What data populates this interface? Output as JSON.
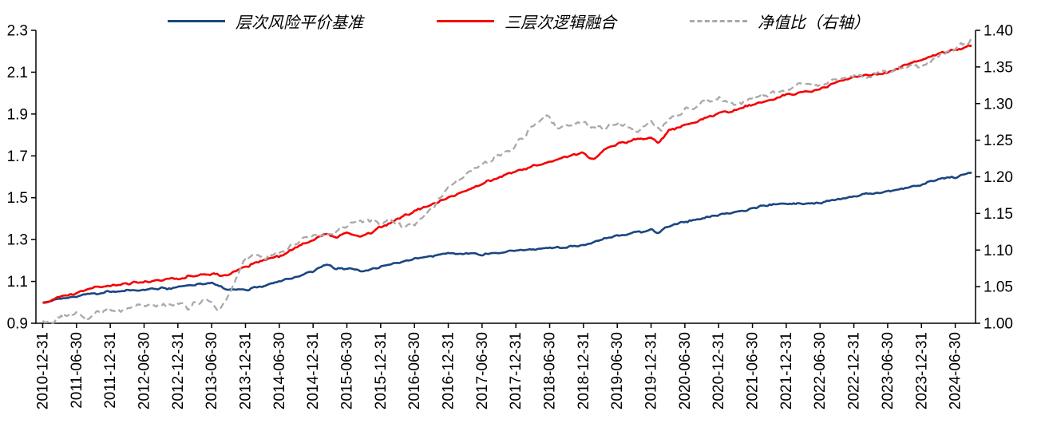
{
  "chart_data": {
    "type": "line",
    "title": "",
    "grid": false,
    "legend_position": "top",
    "x_unit": "half-year index from 2010-12-31",
    "x_min": -0.2,
    "x_max": 27.6,
    "x_labels": [
      "2010-12-31",
      "2011-06-30",
      "2011-12-31",
      "2012-06-30",
      "2012-12-31",
      "2013-06-30",
      "2013-12-31",
      "2014-06-30",
      "2014-12-31",
      "2015-06-30",
      "2015-12-31",
      "2016-06-30",
      "2016-12-31",
      "2017-06-30",
      "2017-12-31",
      "2018-06-30",
      "2018-12-31",
      "2019-06-30",
      "2019-12-31",
      "2020-06-30",
      "2020-12-31",
      "2021-06-30",
      "2021-12-31",
      "2022-06-30",
      "2022-12-31",
      "2023-06-30",
      "2023-12-31",
      "2024-06-30"
    ],
    "left_axis": {
      "min": 0.9,
      "max": 2.3,
      "tick_step": 0.2,
      "tick_labels": [
        "0.9",
        "1.1",
        "1.3",
        "1.5",
        "1.7",
        "1.9",
        "2.1",
        "2.3"
      ]
    },
    "right_axis": {
      "min": 1.0,
      "max": 1.4,
      "tick_step": 0.05,
      "tick_labels": [
        "1.00",
        "1.05",
        "1.10",
        "1.15",
        "1.20",
        "1.25",
        "1.30",
        "1.35",
        "1.40"
      ]
    },
    "axis_color": "#000000",
    "series": [
      {
        "name": "层次风险平价基准",
        "color": "#1a4680",
        "axis": "left",
        "style": "solid",
        "width": 2.6,
        "noise": 0.007,
        "seed": 11,
        "points": [
          [
            0,
            1.0
          ],
          [
            0.5,
            1.016
          ],
          [
            1,
            1.03
          ],
          [
            1.5,
            1.042
          ],
          [
            2,
            1.052
          ],
          [
            2.5,
            1.055
          ],
          [
            3,
            1.062
          ],
          [
            3.5,
            1.066
          ],
          [
            4,
            1.072
          ],
          [
            4.5,
            1.083
          ],
          [
            5,
            1.09
          ],
          [
            5.3,
            1.07
          ],
          [
            5.6,
            1.058
          ],
          [
            6,
            1.06
          ],
          [
            6.5,
            1.077
          ],
          [
            7,
            1.098
          ],
          [
            7.5,
            1.122
          ],
          [
            8,
            1.148
          ],
          [
            8.4,
            1.178
          ],
          [
            8.7,
            1.16
          ],
          [
            9,
            1.162
          ],
          [
            9.4,
            1.152
          ],
          [
            9.7,
            1.158
          ],
          [
            10,
            1.168
          ],
          [
            10.5,
            1.19
          ],
          [
            11,
            1.208
          ],
          [
            11.5,
            1.222
          ],
          [
            12,
            1.232
          ],
          [
            12.5,
            1.234
          ],
          [
            13,
            1.229
          ],
          [
            13.5,
            1.236
          ],
          [
            14,
            1.246
          ],
          [
            14.5,
            1.256
          ],
          [
            15,
            1.262
          ],
          [
            15.5,
            1.266
          ],
          [
            16,
            1.273
          ],
          [
            16.5,
            1.3
          ],
          [
            17,
            1.317
          ],
          [
            17.5,
            1.332
          ],
          [
            18,
            1.347
          ],
          [
            18.2,
            1.33
          ],
          [
            18.5,
            1.366
          ],
          [
            19,
            1.386
          ],
          [
            19.5,
            1.402
          ],
          [
            20,
            1.416
          ],
          [
            20.5,
            1.432
          ],
          [
            21,
            1.447
          ],
          [
            21.5,
            1.468
          ],
          [
            22,
            1.472
          ],
          [
            22.5,
            1.468
          ],
          [
            23,
            1.476
          ],
          [
            23.5,
            1.49
          ],
          [
            24,
            1.508
          ],
          [
            24.5,
            1.523
          ],
          [
            25,
            1.53
          ],
          [
            25.5,
            1.548
          ],
          [
            26,
            1.562
          ],
          [
            26.5,
            1.588
          ],
          [
            27,
            1.6
          ],
          [
            27.5,
            1.625
          ]
        ]
      },
      {
        "name": "三层次逻辑融合",
        "color": "#f40000",
        "axis": "left",
        "style": "solid",
        "width": 2.6,
        "noise": 0.008,
        "seed": 23,
        "points": [
          [
            0,
            1.0
          ],
          [
            0.5,
            1.022
          ],
          [
            1,
            1.047
          ],
          [
            1.5,
            1.07
          ],
          [
            2,
            1.082
          ],
          [
            2.5,
            1.09
          ],
          [
            3,
            1.1
          ],
          [
            3.5,
            1.106
          ],
          [
            4,
            1.113
          ],
          [
            4.5,
            1.13
          ],
          [
            5,
            1.137
          ],
          [
            5.3,
            1.128
          ],
          [
            5.6,
            1.14
          ],
          [
            6,
            1.17
          ],
          [
            6.5,
            1.2
          ],
          [
            7,
            1.222
          ],
          [
            7.5,
            1.26
          ],
          [
            8,
            1.3
          ],
          [
            8.4,
            1.325
          ],
          [
            8.7,
            1.31
          ],
          [
            9,
            1.33
          ],
          [
            9.4,
            1.315
          ],
          [
            9.7,
            1.33
          ],
          [
            10,
            1.36
          ],
          [
            10.5,
            1.4
          ],
          [
            11,
            1.435
          ],
          [
            11.5,
            1.468
          ],
          [
            12,
            1.5
          ],
          [
            12.5,
            1.532
          ],
          [
            13,
            1.565
          ],
          [
            13.5,
            1.598
          ],
          [
            14,
            1.625
          ],
          [
            14.5,
            1.65
          ],
          [
            15,
            1.67
          ],
          [
            15.5,
            1.698
          ],
          [
            16,
            1.715
          ],
          [
            16.3,
            1.68
          ],
          [
            16.6,
            1.73
          ],
          [
            17,
            1.758
          ],
          [
            17.5,
            1.775
          ],
          [
            18,
            1.79
          ],
          [
            18.2,
            1.762
          ],
          [
            18.5,
            1.816
          ],
          [
            19,
            1.85
          ],
          [
            19.5,
            1.875
          ],
          [
            20,
            1.9
          ],
          [
            20.5,
            1.922
          ],
          [
            21,
            1.945
          ],
          [
            21.5,
            1.97
          ],
          [
            22,
            1.99
          ],
          [
            22.5,
            2.002
          ],
          [
            23,
            2.02
          ],
          [
            23.5,
            2.05
          ],
          [
            24,
            2.075
          ],
          [
            24.5,
            2.088
          ],
          [
            25,
            2.1
          ],
          [
            25.5,
            2.13
          ],
          [
            26,
            2.158
          ],
          [
            26.5,
            2.19
          ],
          [
            27,
            2.21
          ],
          [
            27.5,
            2.225
          ]
        ]
      },
      {
        "name": "净值比（右轴）",
        "color": "#a9a9a9",
        "axis": "right",
        "style": "dashed",
        "width": 2.3,
        "noise": 0.005,
        "seed": 37,
        "points": [
          [
            0,
            1.002
          ],
          [
            0.3,
            1.004
          ],
          [
            0.6,
            1.01
          ],
          [
            1,
            1.016
          ],
          [
            1.3,
            1.006
          ],
          [
            1.6,
            1.014
          ],
          [
            2,
            1.018
          ],
          [
            2.3,
            1.013
          ],
          [
            2.6,
            1.02
          ],
          [
            3,
            1.026
          ],
          [
            3.3,
            1.022
          ],
          [
            3.6,
            1.025
          ],
          [
            4,
            1.028
          ],
          [
            4.3,
            1.022
          ],
          [
            4.6,
            1.028
          ],
          [
            5,
            1.033
          ],
          [
            5.2,
            1.02
          ],
          [
            5.4,
            1.03
          ],
          [
            5.7,
            1.06
          ],
          [
            6,
            1.088
          ],
          [
            6.3,
            1.094
          ],
          [
            6.6,
            1.09
          ],
          [
            7,
            1.097
          ],
          [
            7.5,
            1.108
          ],
          [
            8,
            1.119
          ],
          [
            8.3,
            1.123
          ],
          [
            8.6,
            1.12
          ],
          [
            9,
            1.133
          ],
          [
            9.4,
            1.142
          ],
          [
            9.7,
            1.139
          ],
          [
            10,
            1.137
          ],
          [
            10.3,
            1.143
          ],
          [
            10.6,
            1.131
          ],
          [
            11,
            1.137
          ],
          [
            11.3,
            1.148
          ],
          [
            11.6,
            1.159
          ],
          [
            12,
            1.186
          ],
          [
            12.3,
            1.196
          ],
          [
            12.6,
            1.208
          ],
          [
            13,
            1.217
          ],
          [
            13.3,
            1.225
          ],
          [
            13.6,
            1.229
          ],
          [
            14,
            1.243
          ],
          [
            14.3,
            1.258
          ],
          [
            14.6,
            1.274
          ],
          [
            15,
            1.283
          ],
          [
            15.2,
            1.266
          ],
          [
            15.5,
            1.271
          ],
          [
            16,
            1.274
          ],
          [
            16.3,
            1.268
          ],
          [
            16.6,
            1.266
          ],
          [
            17,
            1.274
          ],
          [
            17.3,
            1.268
          ],
          [
            17.6,
            1.258
          ],
          [
            18,
            1.277
          ],
          [
            18.3,
            1.263
          ],
          [
            18.6,
            1.281
          ],
          [
            19,
            1.291
          ],
          [
            19.5,
            1.301
          ],
          [
            20,
            1.306
          ],
          [
            20.4,
            1.299
          ],
          [
            20.7,
            1.303
          ],
          [
            21,
            1.306
          ],
          [
            21.5,
            1.314
          ],
          [
            22,
            1.32
          ],
          [
            22.4,
            1.329
          ],
          [
            22.7,
            1.325
          ],
          [
            23,
            1.326
          ],
          [
            23.5,
            1.334
          ],
          [
            24,
            1.34
          ],
          [
            24.4,
            1.337
          ],
          [
            24.7,
            1.341
          ],
          [
            25,
            1.343
          ],
          [
            25.5,
            1.351
          ],
          [
            26,
            1.354
          ],
          [
            26.5,
            1.363
          ],
          [
            27,
            1.374
          ],
          [
            27.5,
            1.388
          ]
        ]
      }
    ]
  }
}
